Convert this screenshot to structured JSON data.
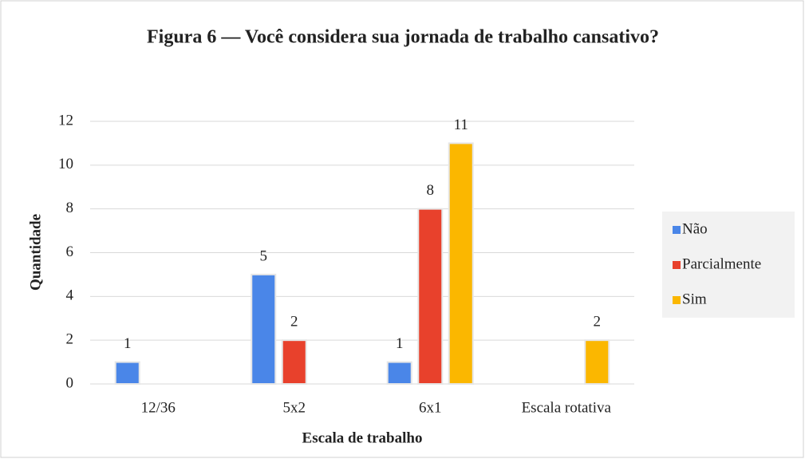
{
  "chart_data": {
    "type": "bar",
    "title": "Figura 6 — Você considera sua jornada  de trabalho  cansativo?",
    "x_label": "Escala de trabalho",
    "y_label": "Quantidade",
    "categories": [
      "12/36",
      "5x2",
      "6x1",
      "Escala rotativa"
    ],
    "series": [
      {
        "name": "Não",
        "color": "#4a86e8",
        "values": [
          1,
          5,
          1,
          null
        ]
      },
      {
        "name": "Parcialmente",
        "color": "#e8412c",
        "values": [
          null,
          2,
          8,
          null
        ]
      },
      {
        "name": "Sim",
        "color": "#fbb700",
        "values": [
          null,
          null,
          11,
          2
        ]
      }
    ],
    "ylim": [
      0,
      12
    ],
    "yticks": [
      0,
      2,
      4,
      6,
      8,
      10,
      12
    ],
    "grid": true,
    "legend": "right"
  }
}
